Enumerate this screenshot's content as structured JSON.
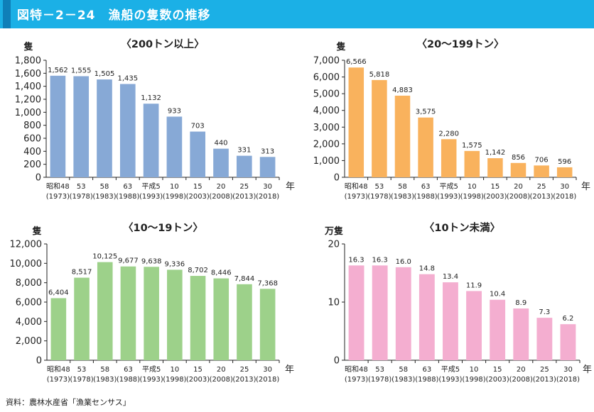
{
  "header": {
    "title": "図特－2－24　漁船の隻数の推移",
    "accent_color": "#0f7fb8",
    "bg_color": "#1bb0e6"
  },
  "source": "資料：農林水産省「漁業センサス」",
  "chart_data": [
    {
      "type": "bar",
      "title": "〈200トン以上〉",
      "ylabel": "隻",
      "xlabel": "年",
      "categories": [
        "昭和48",
        "53",
        "58",
        "63",
        "平成5",
        "10",
        "15",
        "20",
        "25",
        "30"
      ],
      "categories_sub": [
        "(1973)",
        "(1978)",
        "(1983)",
        "(1988)",
        "(1993)",
        "(1998)",
        "(2003)",
        "(2008)",
        "(2013)",
        "(2018)"
      ],
      "values": [
        1562,
        1555,
        1505,
        1435,
        1132,
        933,
        703,
        440,
        331,
        313
      ],
      "value_labels": [
        "1,562",
        "1,555",
        "1,505",
        "1,435",
        "1,132",
        "933",
        "703",
        "440",
        "331",
        "313"
      ],
      "ylim": [
        0,
        1800
      ],
      "yticks": [
        "0",
        "200",
        "400",
        "600",
        "800",
        "1,000",
        "1,200",
        "1,400",
        "1,600",
        "1,800"
      ],
      "color": "#87a9d6"
    },
    {
      "type": "bar",
      "title": "〈20～199トン〉",
      "ylabel": "隻",
      "xlabel": "年",
      "categories": [
        "昭和48",
        "53",
        "58",
        "63",
        "平成5",
        "10",
        "15",
        "20",
        "25",
        "30"
      ],
      "categories_sub": [
        "(1973)",
        "(1978)",
        "(1983)",
        "(1988)",
        "(1993)",
        "(1998)",
        "(2003)",
        "(2008)",
        "(2013)",
        "(2018)"
      ],
      "values": [
        6566,
        5818,
        4883,
        3575,
        2280,
        1575,
        1142,
        856,
        706,
        596
      ],
      "value_labels": [
        "6,566",
        "5,818",
        "4,883",
        "3,575",
        "2,280",
        "1,575",
        "1,142",
        "856",
        "706",
        "596"
      ],
      "ylim": [
        0,
        7000
      ],
      "yticks": [
        "0",
        "1,000",
        "2,000",
        "3,000",
        "4,000",
        "5,000",
        "6,000",
        "7,000"
      ],
      "color": "#f9b25d"
    },
    {
      "type": "bar",
      "title": "〈10～19トン〉",
      "ylabel": "隻",
      "xlabel": "年",
      "categories": [
        "昭和48",
        "53",
        "58",
        "63",
        "平成5",
        "10",
        "15",
        "20",
        "25",
        "30"
      ],
      "categories_sub": [
        "(1973)",
        "(1978)",
        "(1983)",
        "(1988)",
        "(1993)",
        "(1998)",
        "(2003)",
        "(2008)",
        "(2013)",
        "(2018)"
      ],
      "values": [
        6404,
        8517,
        10125,
        9677,
        9638,
        9336,
        8702,
        8446,
        7844,
        7368
      ],
      "value_labels": [
        "6,404",
        "8,517",
        "10,125",
        "9,677",
        "9,638",
        "9,336",
        "8,702",
        "8,446",
        "7,844",
        "7,368"
      ],
      "ylim": [
        0,
        12000
      ],
      "yticks": [
        "0",
        "2,000",
        "4,000",
        "6,000",
        "8,000",
        "10,000",
        "12,000"
      ],
      "color": "#9dd18a"
    },
    {
      "type": "bar",
      "title": "〈10トン未満〉",
      "ylabel": "万隻",
      "xlabel": "年",
      "categories": [
        "昭和48",
        "53",
        "58",
        "63",
        "平成5",
        "10",
        "15",
        "20",
        "25",
        "30"
      ],
      "categories_sub": [
        "(1973)",
        "(1978)",
        "(1983)",
        "(1988)",
        "(1993)",
        "(1998)",
        "(2003)",
        "(2008)",
        "(2013)",
        "(2018)"
      ],
      "values": [
        16.3,
        16.3,
        16.0,
        14.8,
        13.4,
        11.9,
        10.4,
        8.9,
        7.3,
        6.2
      ],
      "value_labels": [
        "16.3",
        "16.3",
        "16.0",
        "14.8",
        "13.4",
        "11.9",
        "10.4",
        "8.9",
        "7.3",
        "6.2"
      ],
      "ylim": [
        0,
        20
      ],
      "yticks": [
        "0",
        "10",
        "20"
      ],
      "color": "#f4aed0"
    }
  ]
}
